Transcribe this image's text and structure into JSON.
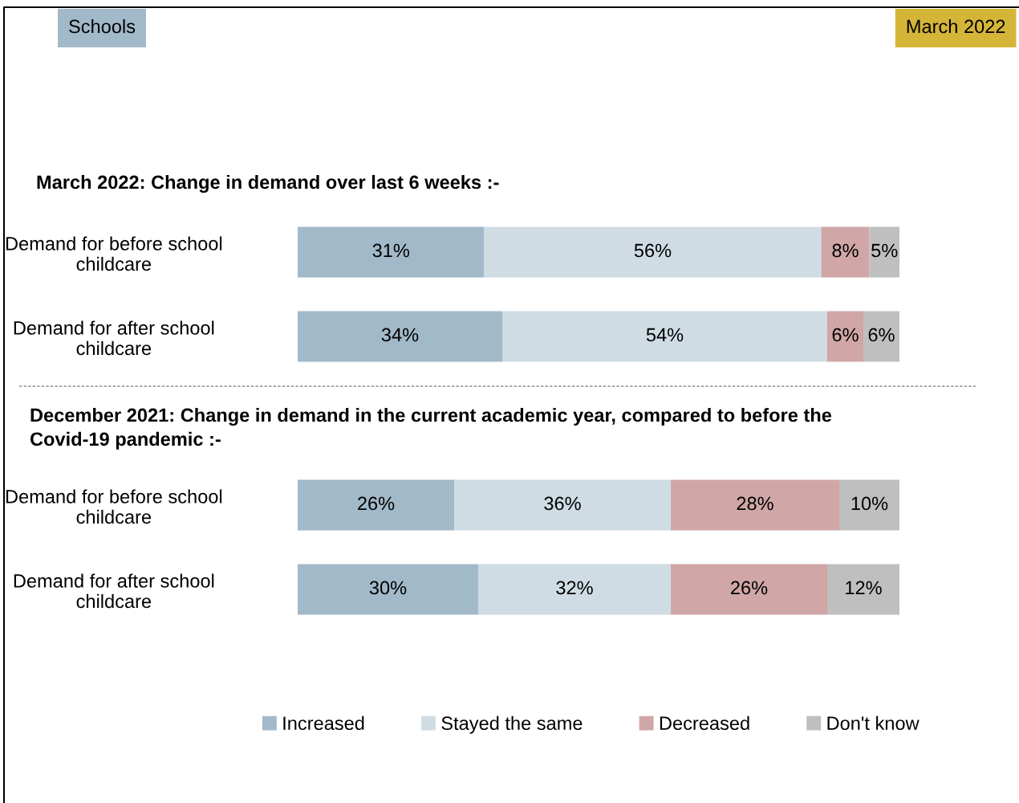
{
  "chart_data": [
    {
      "type": "bar",
      "orientation": "horizontal",
      "stacked": true,
      "title": "March 2022: Change in demand over last 6 weeks :-",
      "annotations": [
        "Schools",
        "March 2022"
      ],
      "categories": [
        "Demand for before school\nchildcare",
        "Demand for after school\nchildcare"
      ],
      "series": [
        {
          "name": "Increased",
          "color": "#a2b9c9",
          "values": [
            31,
            34
          ],
          "value_labels": [
            "31%",
            "34%"
          ]
        },
        {
          "name": "Stayed the same",
          "color": "#cfdce4",
          "values": [
            56,
            54
          ],
          "value_labels": [
            "56%",
            "54%"
          ]
        },
        {
          "name": "Decreased",
          "color": "#d0a6a7",
          "values": [
            8,
            6
          ],
          "value_labels": [
            "8%",
            "6%"
          ]
        },
        {
          "name": "Don't know",
          "color": "#bfbfbf",
          "values": [
            5,
            6
          ],
          "value_labels": [
            "5%",
            "6%"
          ]
        }
      ],
      "tick_labels": "y",
      "legend": "bottom"
    },
    {
      "type": "bar",
      "orientation": "horizontal",
      "stacked": true,
      "title": "December 2021: Change in demand in the current academic year, compared to before the\nCovid-19 pandemic :-",
      "categories": [
        "Demand for before school\nchildcare",
        "Demand for after school\nchildcare"
      ],
      "series": [
        {
          "color": "#a2b9c9",
          "values": [
            26,
            30
          ],
          "value_labels": [
            "26%",
            "30%"
          ]
        },
        {
          "color": "#cfdce4",
          "values": [
            36,
            32
          ],
          "value_labels": [
            "36%",
            "32%"
          ]
        },
        {
          "color": "#d0a6a7",
          "values": [
            28,
            26
          ],
          "value_labels": [
            "28%",
            "26%"
          ]
        },
        {
          "color": "#bfbfbf",
          "values": [
            10,
            12
          ],
          "value_labels": [
            "10%",
            "12%"
          ]
        }
      ],
      "tick_labels": "y"
    }
  ]
}
